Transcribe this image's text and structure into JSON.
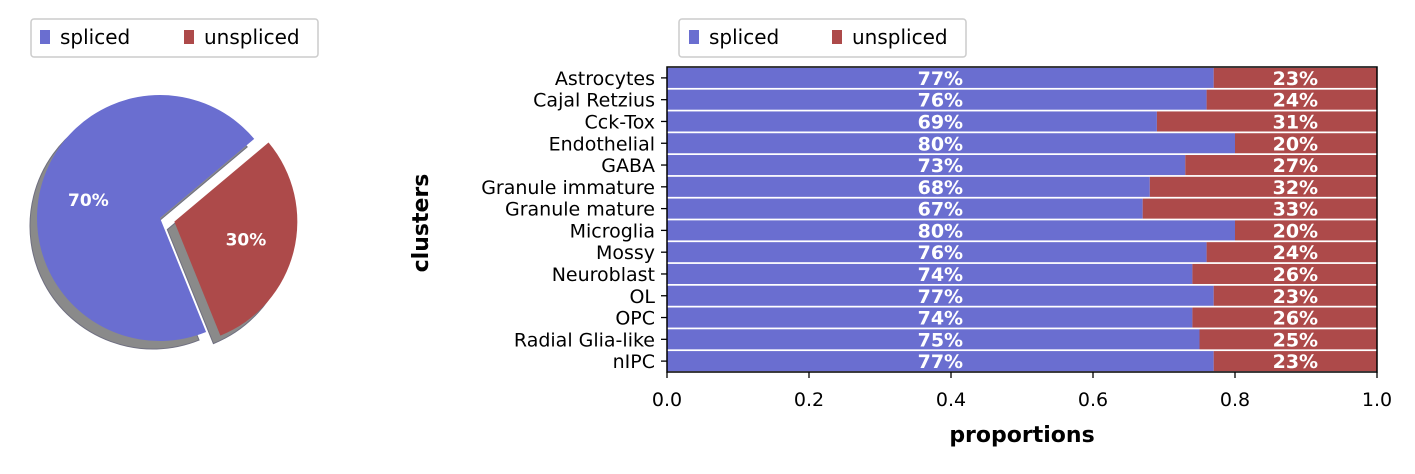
{
  "colors": {
    "spliced": "#6a6ed0",
    "unspliced": "#ad4a4a",
    "shadow": "#8a8a8a"
  },
  "chart_data": [
    {
      "type": "pie",
      "legend": [
        "spliced",
        "unspliced"
      ],
      "legend_position": "top-left, outside",
      "slices": [
        {
          "name": "spliced",
          "value": 70,
          "label": "70%",
          "exploded": false
        },
        {
          "name": "unspliced",
          "value": 30,
          "label": "30%",
          "exploded": true
        }
      ],
      "shadow": true
    },
    {
      "type": "bar",
      "orientation": "horizontal",
      "stacked": true,
      "legend": [
        "spliced",
        "unspliced"
      ],
      "legend_position": "top-left, outside",
      "xlabel": "proportions",
      "ylabel": "clusters",
      "xlim": [
        0,
        1
      ],
      "xticks": [
        "0.0",
        "0.2",
        "0.4",
        "0.6",
        "0.8",
        "1.0"
      ],
      "categories": [
        "Astrocytes",
        "Cajal Retzius",
        "Cck-Tox",
        "Endothelial",
        "GABA",
        "Granule immature",
        "Granule mature",
        "Microglia",
        "Mossy",
        "Neuroblast",
        "OL",
        "OPC",
        "Radial Glia-like",
        "nIPC"
      ],
      "series": [
        {
          "name": "spliced",
          "values": [
            0.77,
            0.76,
            0.69,
            0.8,
            0.73,
            0.68,
            0.67,
            0.8,
            0.76,
            0.74,
            0.77,
            0.74,
            0.75,
            0.77
          ],
          "labels": [
            "77%",
            "76%",
            "69%",
            "80%",
            "73%",
            "68%",
            "67%",
            "80%",
            "76%",
            "74%",
            "77%",
            "74%",
            "75%",
            "77%"
          ]
        },
        {
          "name": "unspliced",
          "values": [
            0.23,
            0.24,
            0.31,
            0.2,
            0.27,
            0.32,
            0.33,
            0.2,
            0.24,
            0.26,
            0.23,
            0.26,
            0.25,
            0.23
          ],
          "labels": [
            "23%",
            "24%",
            "31%",
            "20%",
            "27%",
            "32%",
            "33%",
            "20%",
            "24%",
            "26%",
            "23%",
            "26%",
            "25%",
            "23%"
          ]
        }
      ]
    }
  ]
}
